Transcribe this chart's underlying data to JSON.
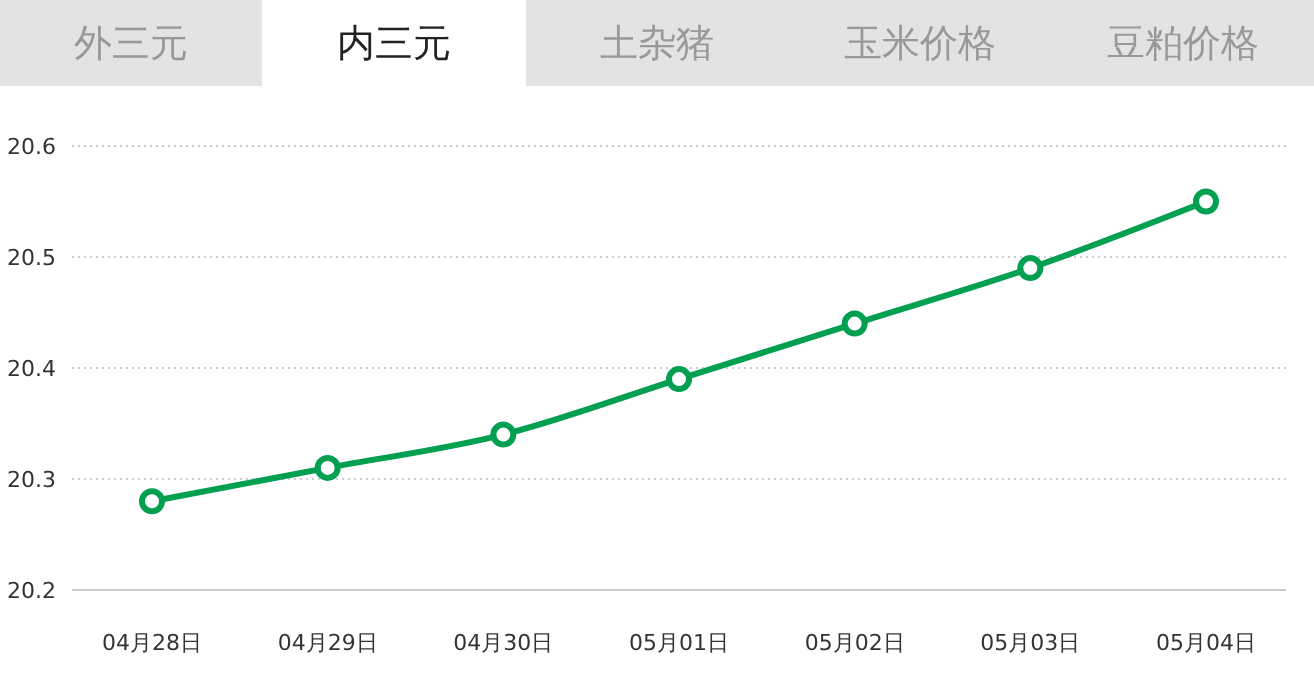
{
  "chart_data": {
    "type": "line",
    "annotations": [
      "外三元",
      "内三元",
      "土杂猪",
      "玉米价格",
      "豆粕价格"
    ],
    "categories": [
      "04月28日",
      "04月29日",
      "04月30日",
      "05月01日",
      "05月02日",
      "05月03日",
      "05月04日"
    ],
    "series": [
      {
        "color": "#00a050",
        "values": [
          20.28,
          20.31,
          20.34,
          20.39,
          20.44,
          20.49,
          20.55
        ]
      }
    ],
    "ylim": [
      20.2,
      20.6
    ],
    "yticks": [
      20.2,
      20.3,
      20.4,
      20.5,
      20.6
    ],
    "grid": "y",
    "legend": false,
    "marker": "circle",
    "line_style": "solid"
  }
}
